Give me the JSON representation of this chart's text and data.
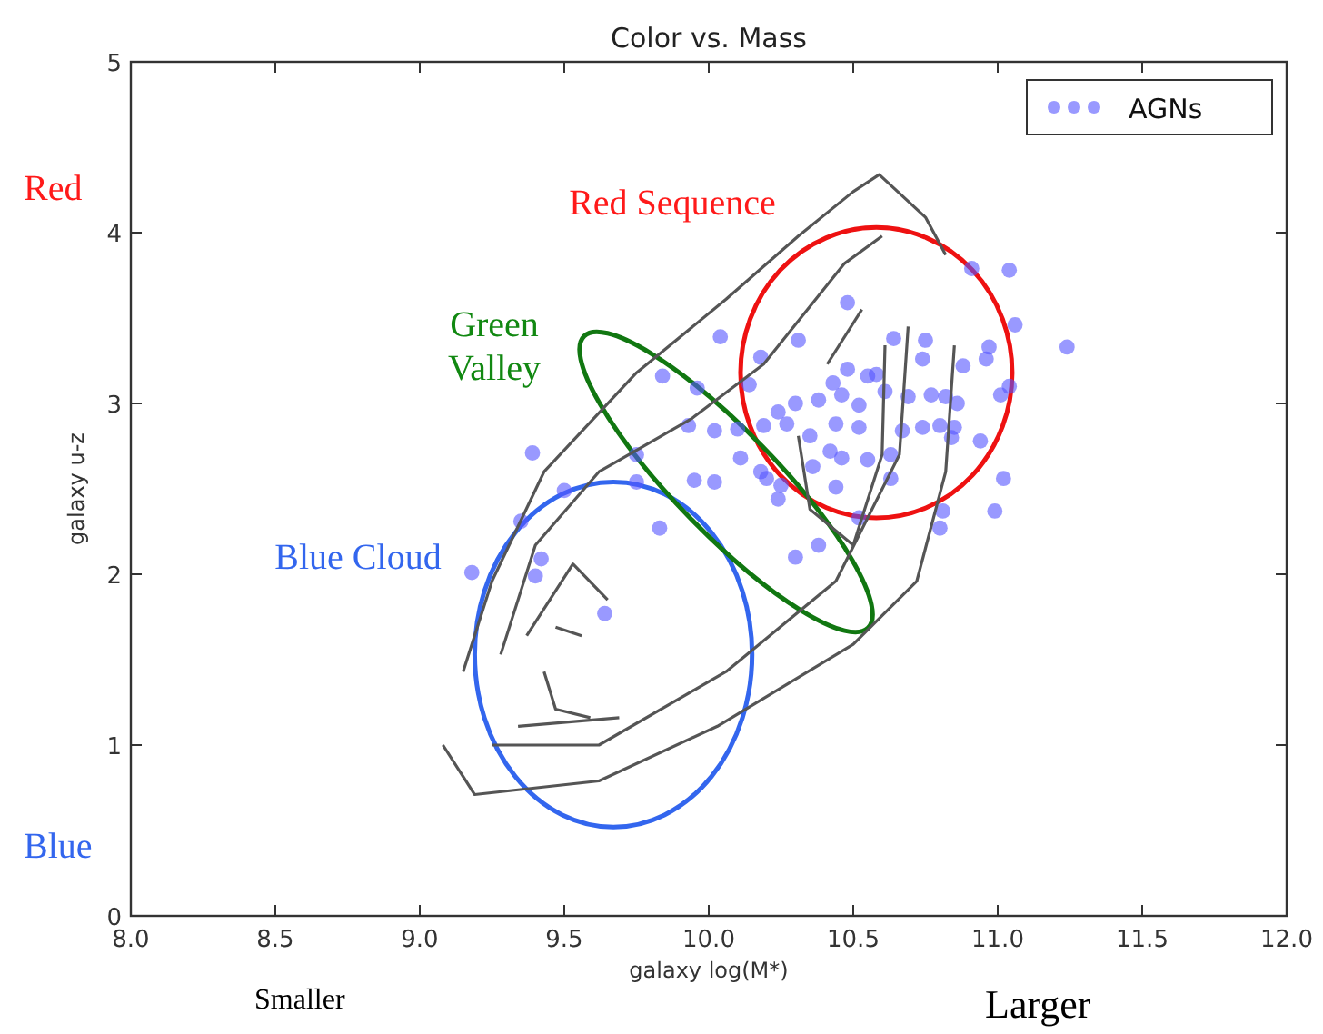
{
  "chart_data": {
    "type": "scatter",
    "title": "Color vs. Mass",
    "xlabel": "galaxy log(M*)",
    "ylabel": "galaxy u-z",
    "xlim": [
      8,
      12
    ],
    "ylim": [
      0,
      5
    ],
    "xticks": [
      {
        "value": 8,
        "label": "8.0"
      },
      {
        "value": 8.5,
        "label": "8.5"
      },
      {
        "value": 9,
        "label": "9.0"
      },
      {
        "value": 9.5,
        "label": "9.5"
      },
      {
        "value": 10,
        "label": "10.0"
      },
      {
        "value": 10.5,
        "label": "10.5"
      },
      {
        "value": 11,
        "label": "11.0"
      },
      {
        "value": 11.5,
        "label": "11.5"
      },
      {
        "value": 12,
        "label": "12.0"
      }
    ],
    "yticks": [
      0,
      1,
      2,
      3,
      4,
      5
    ],
    "grid": false,
    "legend": "top right",
    "series": [
      {
        "name": "AGNs",
        "color": "#5555ff",
        "marker": "circle",
        "x": [
          10.91,
          11.04,
          10.48,
          11.06,
          11.24,
          10.04,
          10.31,
          10.64,
          10.75,
          10.18,
          10.97,
          10.88,
          10.96,
          10.74,
          9.84,
          9.96,
          10.14,
          10.48,
          10.55,
          10.58,
          10.43,
          10.46,
          10.61,
          10.69,
          10.77,
          10.82,
          10.86,
          11.04,
          11.01,
          10.38,
          10.52,
          10.3,
          10.24,
          9.93,
          10.02,
          10.1,
          10.19,
          10.27,
          10.35,
          10.44,
          10.52,
          10.67,
          10.74,
          10.8,
          10.85,
          10.84,
          10.94,
          10.42,
          10.46,
          10.55,
          10.63,
          10.11,
          10.36,
          10.18,
          10.2,
          10.63,
          11.02,
          9.95,
          10.02,
          10.25,
          10.44,
          10.24,
          10.81,
          10.99,
          10.8,
          10.52,
          10.38,
          10.3,
          9.83,
          9.39,
          9.5,
          9.35,
          9.42,
          9.4,
          9.18,
          9.64,
          9.75,
          9.75
        ],
        "values": [
          3.79,
          3.78,
          3.59,
          3.46,
          3.33,
          3.39,
          3.37,
          3.38,
          3.37,
          3.27,
          3.33,
          3.22,
          3.26,
          3.26,
          3.16,
          3.09,
          3.11,
          3.2,
          3.16,
          3.17,
          3.12,
          3.05,
          3.07,
          3.04,
          3.05,
          3.04,
          3.0,
          3.1,
          3.05,
          3.02,
          2.99,
          3.0,
          2.95,
          2.87,
          2.84,
          2.85,
          2.87,
          2.88,
          2.81,
          2.88,
          2.86,
          2.84,
          2.86,
          2.87,
          2.86,
          2.8,
          2.78,
          2.72,
          2.68,
          2.67,
          2.7,
          2.68,
          2.63,
          2.6,
          2.56,
          2.56,
          2.56,
          2.55,
          2.54,
          2.52,
          2.51,
          2.44,
          2.37,
          2.37,
          2.27,
          2.33,
          2.17,
          2.1,
          2.27,
          2.71,
          2.49,
          2.31,
          2.09,
          1.99,
          2.01,
          1.77,
          2.7,
          2.54
        ]
      },
      {
        "type": "line",
        "color": "#555555",
        "x": [
          9.08,
          9.19,
          9.62,
          10.03,
          10.5,
          10.72,
          10.82,
          10.85
        ],
        "values": [
          1.0,
          0.71,
          0.79,
          1.11,
          1.59,
          1.96,
          2.6,
          3.34
        ]
      },
      {
        "type": "line",
        "color": "#555555",
        "x": [
          9.15,
          9.25,
          9.43,
          9.75,
          10.06,
          10.31,
          10.5,
          10.59,
          10.75,
          10.82
        ],
        "values": [
          1.43,
          1.96,
          2.6,
          3.18,
          3.61,
          3.98,
          4.24,
          4.34,
          4.09,
          3.87
        ]
      },
      {
        "type": "line",
        "color": "#555555",
        "x": [
          9.25,
          9.62,
          10.06,
          10.44,
          10.66,
          10.69
        ],
        "values": [
          1.0,
          1.0,
          1.43,
          1.96,
          2.7,
          3.45
        ]
      },
      {
        "type": "line",
        "color": "#555555",
        "x": [
          9.28,
          9.4,
          9.62,
          9.94,
          10.19,
          10.47,
          10.6
        ],
        "values": [
          1.53,
          2.17,
          2.6,
          2.91,
          3.23,
          3.82,
          3.98
        ]
      },
      {
        "type": "line",
        "color": "#555555",
        "x": [
          10.31,
          10.35,
          10.5,
          10.6,
          10.61
        ],
        "values": [
          2.81,
          2.38,
          2.17,
          2.7,
          3.34
        ]
      },
      {
        "type": "line",
        "color": "#555555",
        "x": [
          10.41,
          10.53
        ],
        "values": [
          3.23,
          3.55
        ]
      },
      {
        "type": "line",
        "color": "#555555",
        "x": [
          9.34,
          9.69
        ],
        "values": [
          1.11,
          1.16
        ]
      },
      {
        "type": "line",
        "color": "#555555",
        "x": [
          9.37,
          9.53,
          9.65
        ],
        "values": [
          1.64,
          2.06,
          1.85
        ]
      },
      {
        "type": "line",
        "color": "#555555",
        "x": [
          9.43,
          9.47,
          9.59
        ],
        "values": [
          1.43,
          1.21,
          1.16
        ]
      },
      {
        "type": "line",
        "color": "#555555",
        "x": [
          9.47,
          9.56
        ],
        "values": [
          1.69,
          1.64
        ]
      }
    ],
    "annotations": [
      "Red Sequence",
      "Green Valley",
      "Blue Cloud",
      "Red",
      "Blue",
      "Smaller",
      "Larger"
    ]
  }
}
